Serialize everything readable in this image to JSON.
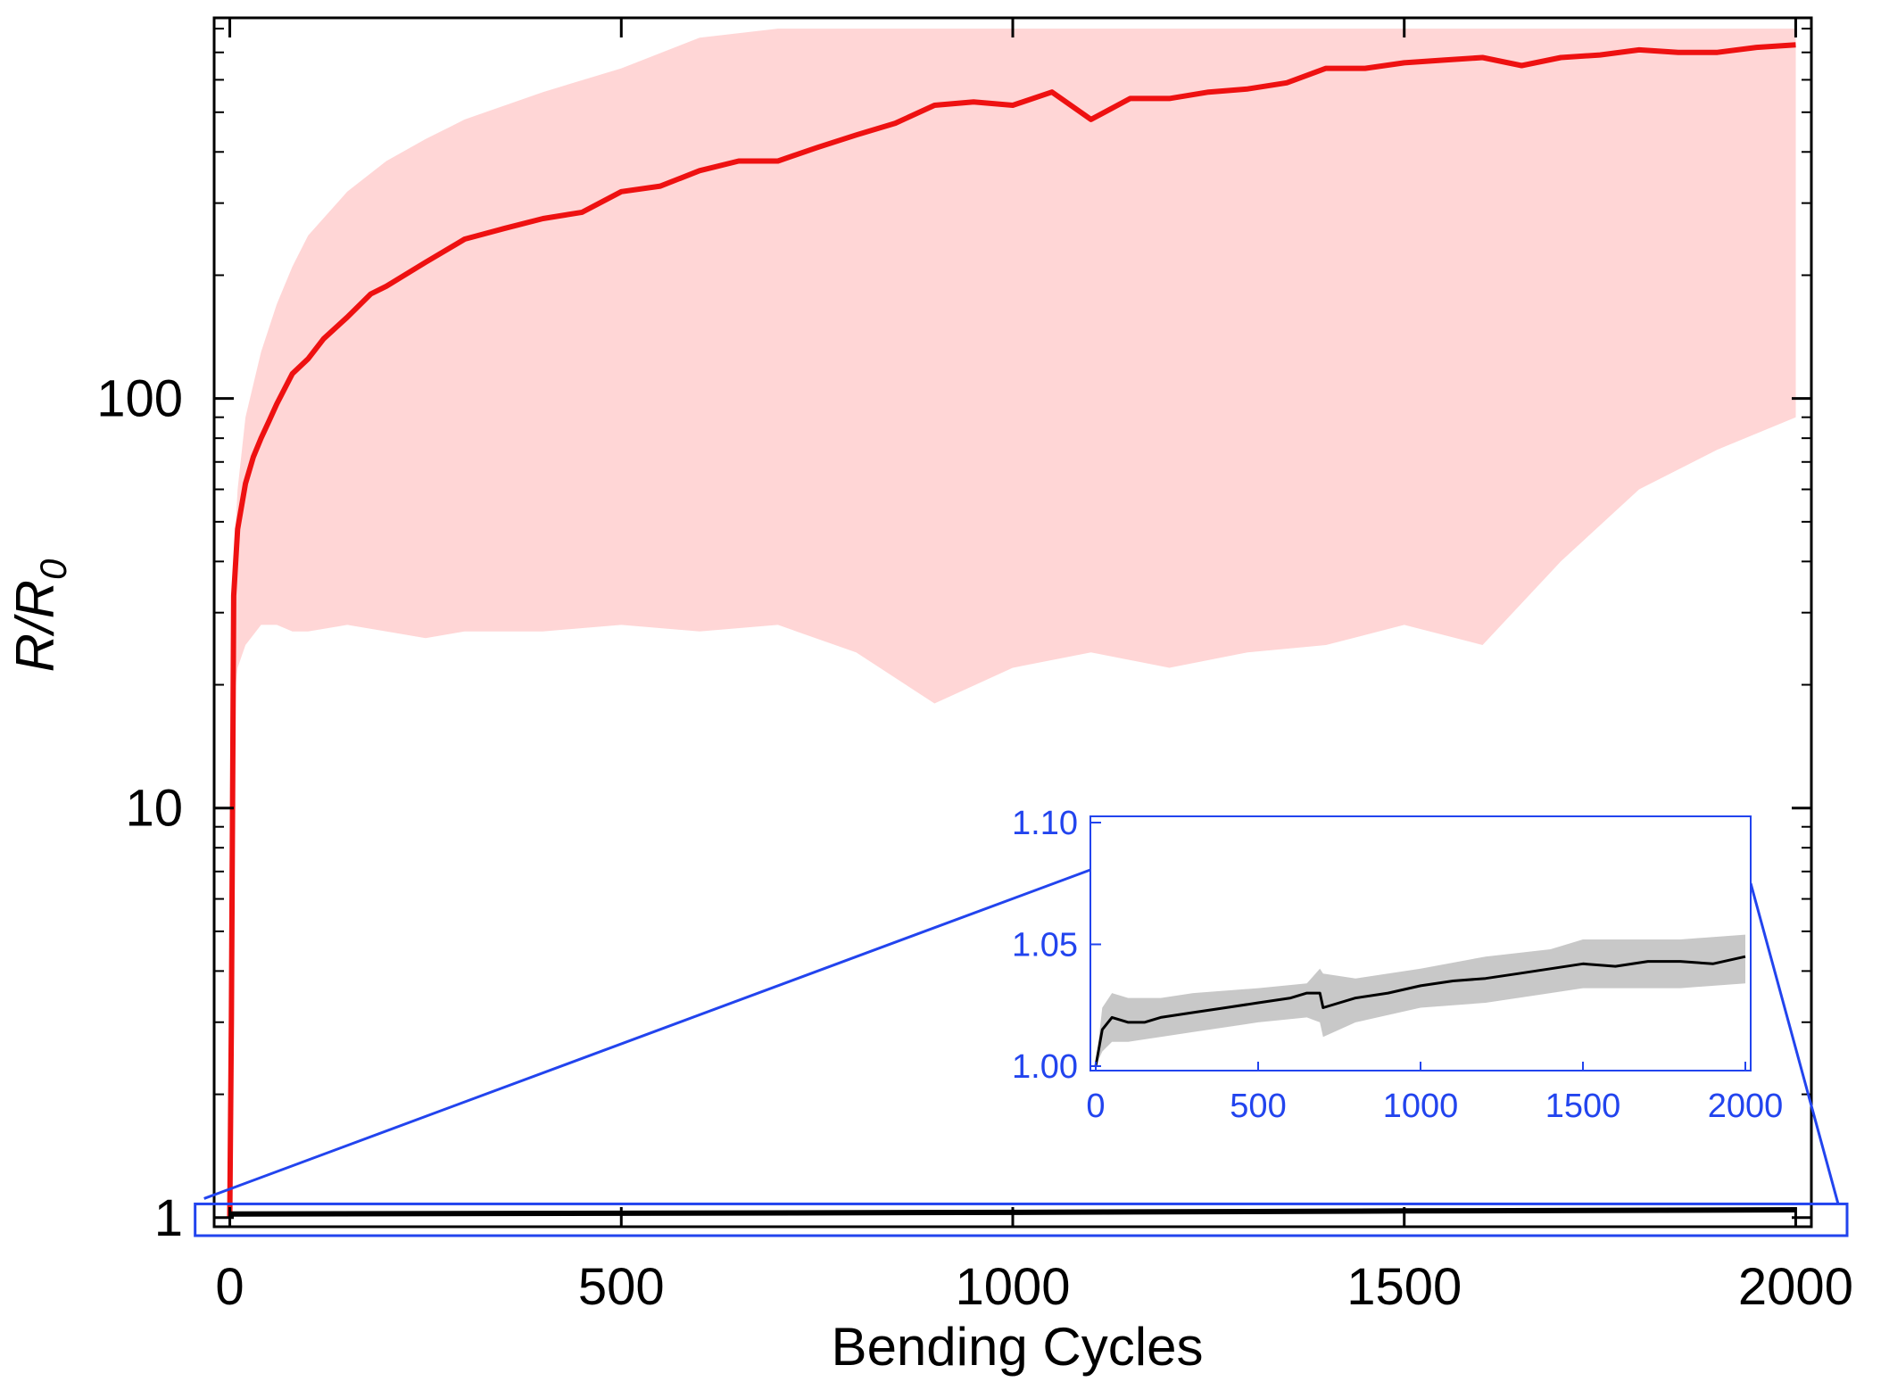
{
  "chart_data": [
    {
      "id": "main",
      "type": "line",
      "xlabel": "Bending Cycles",
      "ylabel": "R/R",
      "ylabel_subscript": "0",
      "yscale": "log",
      "xlim": [
        -20,
        2020
      ],
      "ylim": [
        0.95,
        850
      ],
      "x_ticks": [
        0,
        500,
        1000,
        1500,
        2000
      ],
      "x_tick_labels": [
        "0",
        "500",
        "1000",
        "1500",
        "2000"
      ],
      "y_ticks": [
        1,
        10,
        100
      ],
      "y_tick_labels": [
        "1",
        "10",
        "100"
      ],
      "grid": false,
      "colors": {
        "red_line": "#ee1111",
        "red_band": "#ffd6d6",
        "black_line": "#000000",
        "zoom_box": "#2244ee",
        "axis": "#000000"
      },
      "series": [
        {
          "name": "red",
          "x": [
            0,
            2,
            5,
            10,
            20,
            30,
            40,
            50,
            60,
            80,
            100,
            120,
            150,
            180,
            200,
            250,
            300,
            350,
            400,
            450,
            500,
            550,
            600,
            650,
            700,
            750,
            800,
            850,
            900,
            950,
            1000,
            1050,
            1100,
            1150,
            1200,
            1250,
            1300,
            1350,
            1400,
            1450,
            1500,
            1550,
            1600,
            1650,
            1700,
            1750,
            1800,
            1850,
            1900,
            1950,
            2000
          ],
          "values": [
            1,
            3,
            33,
            48,
            62,
            72,
            80,
            88,
            97,
            115,
            125,
            140,
            158,
            180,
            188,
            215,
            245,
            260,
            275,
            285,
            320,
            330,
            360,
            380,
            380,
            410,
            440,
            470,
            520,
            530,
            520,
            560,
            480,
            540,
            540,
            560,
            570,
            590,
            640,
            640,
            660,
            670,
            680,
            650,
            680,
            690,
            710,
            700,
            700,
            720,
            730
          ]
        },
        {
          "name": "black",
          "x": [
            0,
            500,
            1000,
            1500,
            2000
          ],
          "values": [
            1.02,
            1.025,
            1.03,
            1.038,
            1.045
          ]
        }
      ],
      "band": {
        "name": "red-range",
        "x": [
          0,
          5,
          10,
          20,
          40,
          60,
          80,
          100,
          150,
          200,
          250,
          300,
          400,
          500,
          600,
          700,
          800,
          900,
          1000,
          1100,
          1200,
          1300,
          1400,
          1500,
          1600,
          1700,
          1800,
          1900,
          2000
        ],
        "upper": [
          1.5,
          40,
          60,
          90,
          130,
          170,
          210,
          250,
          320,
          380,
          430,
          480,
          560,
          640,
          760,
          800,
          800,
          800,
          800,
          800,
          800,
          800,
          800,
          800,
          800,
          800,
          800,
          800,
          800
        ],
        "lower": [
          1,
          18,
          22,
          25,
          28,
          28,
          27,
          27,
          28,
          27,
          26,
          27,
          27,
          28,
          27,
          28,
          24,
          18,
          22,
          24,
          22,
          24,
          25,
          28,
          25,
          40,
          60,
          75,
          90
        ]
      },
      "zoom_box": {
        "x_range": [
          -50,
          2020
        ],
        "y_range": [
          0.95,
          1.08
        ]
      }
    },
    {
      "id": "inset",
      "type": "line",
      "xlim": [
        0,
        2000
      ],
      "ylim": [
        1.0,
        1.1
      ],
      "x_ticks": [
        0,
        500,
        1000,
        1500,
        2000
      ],
      "x_tick_labels": [
        "0",
        "500",
        "1000",
        "1500",
        "2000"
      ],
      "y_ticks": [
        1.0,
        1.05,
        1.1
      ],
      "y_tick_labels": [
        "1.00",
        "1.05",
        "1.10"
      ],
      "grid": false,
      "colors": {
        "line": "#000000",
        "band": "#c8c8c8",
        "axis": "#2244ee"
      },
      "series": [
        {
          "name": "inset-black",
          "x": [
            0,
            20,
            50,
            100,
            150,
            200,
            300,
            400,
            500,
            600,
            650,
            690,
            700,
            800,
            900,
            1000,
            1100,
            1200,
            1300,
            1400,
            1500,
            1600,
            1700,
            1800,
            1900,
            2000
          ],
          "values": [
            1.0,
            1.015,
            1.02,
            1.018,
            1.018,
            1.02,
            1.022,
            1.024,
            1.026,
            1.028,
            1.03,
            1.03,
            1.024,
            1.028,
            1.03,
            1.033,
            1.035,
            1.036,
            1.038,
            1.04,
            1.042,
            1.041,
            1.043,
            1.043,
            1.042,
            1.045
          ]
        }
      ],
      "band": {
        "x": [
          0,
          20,
          50,
          100,
          200,
          300,
          500,
          650,
          690,
          700,
          800,
          1000,
          1200,
          1400,
          1500,
          1600,
          1800,
          2000
        ],
        "upper": [
          1.0,
          1.024,
          1.03,
          1.028,
          1.028,
          1.03,
          1.032,
          1.034,
          1.04,
          1.038,
          1.036,
          1.04,
          1.045,
          1.048,
          1.052,
          1.052,
          1.052,
          1.054
        ],
        "lower": [
          1.0,
          1.006,
          1.01,
          1.01,
          1.012,
          1.014,
          1.018,
          1.02,
          1.018,
          1.012,
          1.018,
          1.024,
          1.026,
          1.03,
          1.032,
          1.032,
          1.032,
          1.034
        ]
      }
    }
  ]
}
